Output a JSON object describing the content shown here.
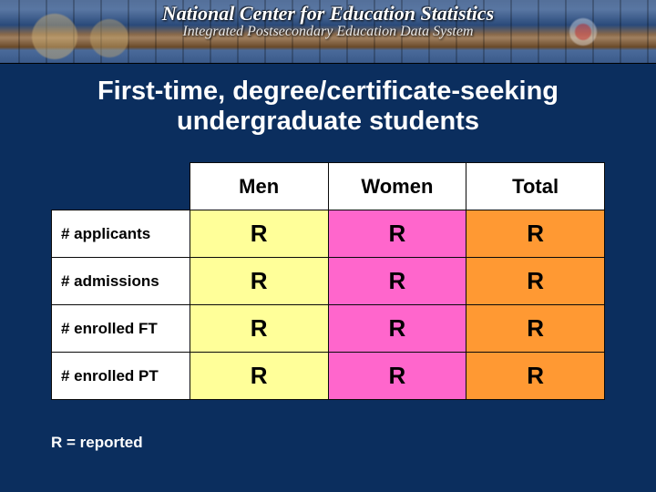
{
  "banner": {
    "title": "National Center for Education Statistics",
    "subtitle": "Integrated Postsecondary Education Data System"
  },
  "headline": "First-time, degree/certificate-seeking undergraduate students",
  "table": {
    "columns": [
      "Men",
      "Women",
      "Total"
    ],
    "column_colors": [
      "#ffff99",
      "#ff66cc",
      "#ff9933"
    ],
    "header_bg": "#ffffff",
    "rowlabel_bg": "#ffffff",
    "border_color": "#0a0a0a",
    "rows": [
      {
        "label": "# applicants",
        "values": [
          "R",
          "R",
          "R"
        ]
      },
      {
        "label": "# admissions",
        "values": [
          "R",
          "R",
          "R"
        ]
      },
      {
        "label": "# enrolled FT",
        "values": [
          "R",
          "R",
          "R"
        ]
      },
      {
        "label": "# enrolled PT",
        "values": [
          "R",
          "R",
          "R"
        ]
      }
    ]
  },
  "legend": "R = reported",
  "background_color": "#0b2e5e"
}
